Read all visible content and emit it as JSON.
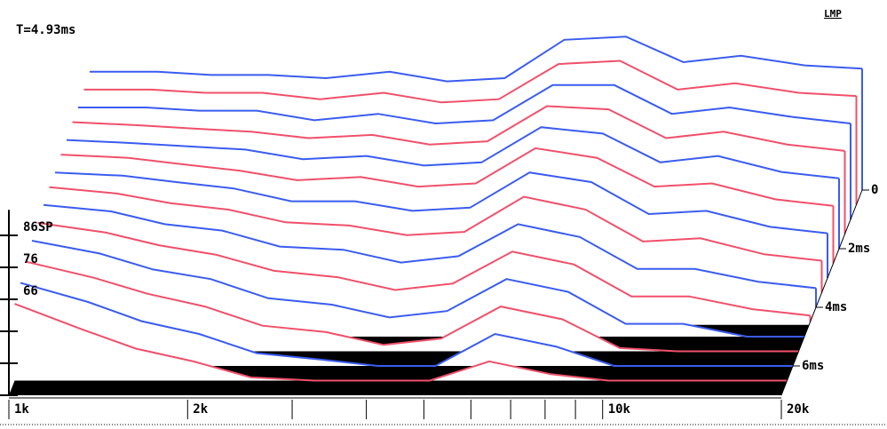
{
  "chart_data": {
    "type": "waterfall",
    "title": "T=4.93ms",
    "logo": "LMP",
    "xscale": "log",
    "xlim": [
      1000,
      20000
    ],
    "xticks": [
      {
        "value": 1000,
        "label": "1k"
      },
      {
        "value": 2000,
        "label": "2k"
      },
      {
        "value": 10000,
        "label": "10k"
      },
      {
        "value": 20000,
        "label": "20k"
      }
    ],
    "xminorticks": [
      3000,
      4000,
      5000,
      6000,
      7000,
      8000,
      9000
    ],
    "tlim": [
      0,
      7
    ],
    "tticks": [
      0,
      {
        "value": 2,
        "label": "2ms"
      },
      {
        "value": 4,
        "label": "4ms"
      },
      {
        "value": 6,
        "label": "6ms"
      }
    ],
    "zlim": [
      36,
      94
    ],
    "zticks": [
      {
        "value": 86,
        "label": "86SP"
      },
      76,
      66
    ],
    "zminorticks": [
      56,
      46,
      36
    ],
    "x": [
      1000,
      1300,
      1600,
      2000,
      2500,
      3200,
      4000,
      5000,
      6300,
      8000,
      10000,
      12500,
      16000,
      20000
    ],
    "series": [
      {
        "t": 0.0,
        "color": "#3a5cf0",
        "values": [
          73,
          73,
          72,
          72,
          71,
          73,
          70,
          71,
          83,
          84,
          76,
          78,
          75,
          74
        ]
      },
      {
        "t": 0.5,
        "color": "#f0506a",
        "values": [
          72,
          72,
          71,
          71,
          69,
          71,
          68,
          69,
          80,
          81,
          72,
          74,
          71,
          70
        ]
      },
      {
        "t": 1.0,
        "color": "#3a5cf0",
        "values": [
          71,
          71,
          70,
          70,
          67,
          69,
          66,
          67,
          78,
          78,
          69,
          71,
          68,
          66
        ]
      },
      {
        "t": 1.5,
        "color": "#f0506a",
        "values": [
          71,
          70,
          69,
          68,
          66,
          67,
          64,
          65,
          76,
          75,
          66,
          68,
          64,
          62
        ]
      },
      {
        "t": 2.0,
        "color": "#3a5cf0",
        "values": [
          70,
          69,
          68,
          67,
          64,
          65,
          62,
          63,
          74,
          72,
          63,
          65,
          60,
          58
        ]
      },
      {
        "t": 2.5,
        "color": "#f0506a",
        "values": [
          70,
          69,
          67,
          65,
          62,
          63,
          60,
          61,
          72,
          69,
          60,
          61,
          56,
          54
        ]
      },
      {
        "t": 3.0,
        "color": "#3a5cf0",
        "values": [
          69,
          68,
          66,
          64,
          60,
          60,
          57,
          58,
          69,
          66,
          56,
          57,
          52,
          50
        ]
      },
      {
        "t": 3.5,
        "color": "#f0506a",
        "values": [
          69,
          67,
          64,
          62,
          58,
          57,
          54,
          55,
          66,
          62,
          52,
          53,
          48,
          46
        ]
      },
      {
        "t": 4.0,
        "color": "#3a5cf0",
        "values": [
          68,
          66,
          62,
          60,
          55,
          54,
          50,
          52,
          62,
          58,
          48,
          48,
          44,
          42
        ]
      },
      {
        "t": 4.5,
        "color": "#f0506a",
        "values": [
          67,
          64,
          60,
          57,
          52,
          50,
          46,
          48,
          58,
          54,
          44,
          44,
          40,
          38
        ]
      },
      {
        "t": 5.0,
        "color": "#3a5cf0",
        "values": [
          66,
          62,
          57,
          54,
          48,
          46,
          42,
          44,
          54,
          50,
          40,
          40,
          36,
          36
        ]
      },
      {
        "t": 5.5,
        "color": "#f0506a",
        "values": [
          64,
          59,
          54,
          50,
          44,
          42,
          38,
          40,
          50,
          46,
          37,
          36,
          36,
          36
        ]
      },
      {
        "t": 6.0,
        "color": "#3a5cf0",
        "values": [
          62,
          56,
          50,
          46,
          40,
          38,
          36,
          36,
          46,
          42,
          36,
          36,
          36,
          36
        ]
      },
      {
        "t": 6.5,
        "color": "#f0506a",
        "values": [
          60,
          52,
          46,
          42,
          37,
          36,
          36,
          36,
          42,
          38,
          36,
          36,
          36,
          36
        ]
      }
    ]
  }
}
